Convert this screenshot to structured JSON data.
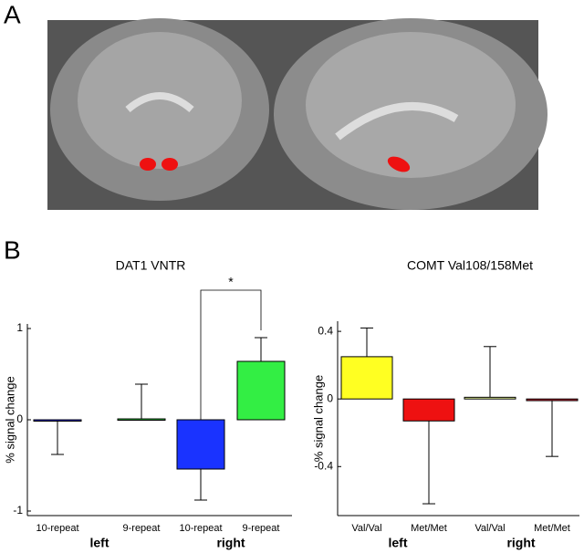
{
  "panel_labels": [
    "A",
    "B"
  ],
  "chart_data": [
    {
      "type": "bar",
      "title": "DAT1 VNTR",
      "ylabel": "% signal change",
      "categories": [
        "10-repeat",
        "9-repeat",
        "10-repeat",
        "9-repeat"
      ],
      "groups": [
        "left",
        "right"
      ],
      "values": [
        -0.01,
        0.01,
        -0.54,
        0.64
      ],
      "errors": [
        0.37,
        0.38,
        0.34,
        0.26
      ],
      "colors": [
        "#1a1aff",
        "#33dd44",
        "#1a33ff",
        "#33ee44"
      ],
      "ylim": [
        -1.05,
        1.05
      ],
      "yticks": [
        -1,
        0,
        1
      ],
      "annotation": "*"
    },
    {
      "type": "bar",
      "title": "COMT Val108/158Met",
      "ylabel": "% signal change",
      "categories": [
        "Val/Val",
        "Met/Met",
        "Val/Val",
        "Met/Met"
      ],
      "groups": [
        "left",
        "right"
      ],
      "values": [
        0.25,
        -0.13,
        0.01,
        -0.01
      ],
      "errors": [
        0.17,
        0.49,
        0.3,
        0.33
      ],
      "colors": [
        "#ffff22",
        "#ee1111",
        "#eeff99",
        "#cc2233"
      ],
      "ylim": [
        -0.69,
        0.46
      ],
      "yticks": [
        -0.4,
        0,
        0.4
      ]
    }
  ]
}
